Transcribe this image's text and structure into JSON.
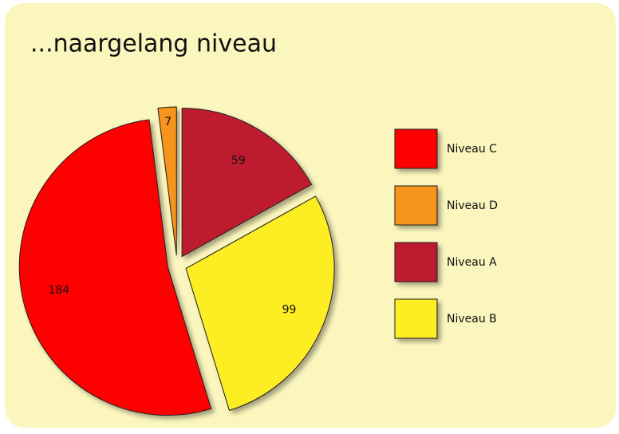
{
  "chart_data": {
    "type": "pie",
    "title": "...naargelang niveau",
    "categories": [
      "Niveau C",
      "Niveau D",
      "Niveau A",
      "Niveau B"
    ],
    "values": [
      184,
      7,
      59,
      99
    ],
    "colors": [
      "#ff0000",
      "#f7941d",
      "#be1e2d",
      "#fcee21"
    ],
    "legend": "right"
  }
}
